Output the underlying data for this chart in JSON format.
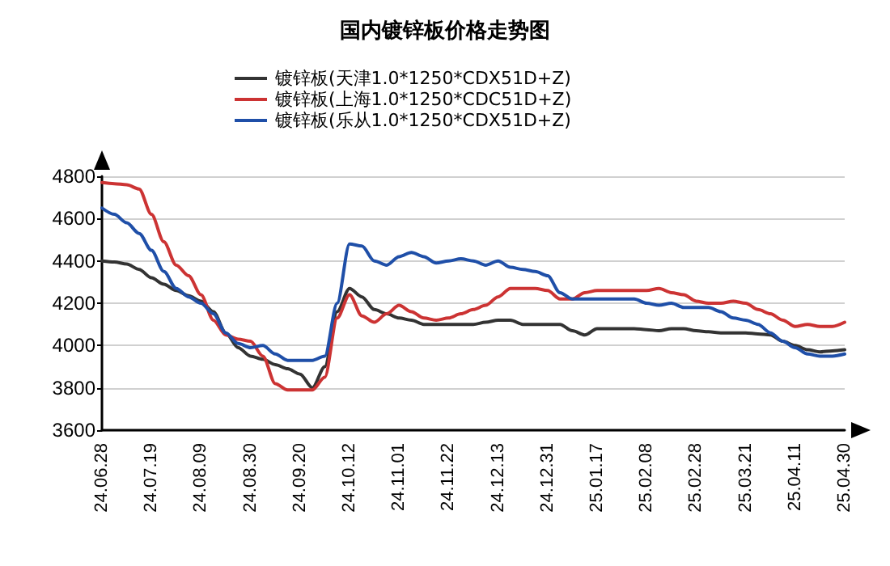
{
  "chart_data": {
    "type": "line",
    "title": "国内镀锌板价格走势图",
    "categories": [
      "24.06.28",
      null,
      null,
      null,
      "24.07.19",
      null,
      null,
      null,
      "24.08.09",
      null,
      null,
      null,
      "24.08.30",
      null,
      null,
      null,
      "24.09.20",
      null,
      null,
      null,
      "24.10.12",
      null,
      null,
      null,
      "24.11.01",
      null,
      null,
      null,
      "24.11.22",
      null,
      null,
      null,
      "24.12.13",
      null,
      null,
      null,
      "24.12.31",
      null,
      null,
      null,
      "25.01.17",
      null,
      null,
      null,
      "25.02.08",
      null,
      null,
      null,
      "25.02.28",
      null,
      null,
      null,
      "25.03.21",
      null,
      null,
      null,
      "25.04.11",
      null,
      null,
      null,
      "25.04.30"
    ],
    "series": [
      {
        "name": "镀锌板(天津1.0*1250*CDX51D+Z)",
        "color": "#333333",
        "values": [
          4400,
          4395,
          4385,
          4360,
          4320,
          4290,
          4260,
          4235,
          4210,
          4160,
          4060,
          3990,
          3950,
          3935,
          3910,
          3890,
          3865,
          3800,
          3900,
          4160,
          4270,
          4230,
          4170,
          4150,
          4130,
          4120,
          4100,
          4100,
          4100,
          4100,
          4100,
          4110,
          4120,
          4120,
          4100,
          4100,
          4100,
          4100,
          4070,
          4050,
          4080,
          4080,
          4080,
          4080,
          4075,
          4070,
          4080,
          4080,
          4070,
          4065,
          4060,
          4060,
          4060,
          4055,
          4050,
          4020,
          4000,
          3980,
          3970,
          3975,
          3980
        ]
      },
      {
        "name": "镀锌板(上海1.0*1250*CDC51D+Z)",
        "color": "#cc3333",
        "values": [
          4770,
          4765,
          4760,
          4740,
          4620,
          4490,
          4380,
          4330,
          4240,
          4120,
          4050,
          4030,
          4020,
          3950,
          3820,
          3790,
          3790,
          3790,
          3850,
          4130,
          4240,
          4140,
          4110,
          4150,
          4190,
          4160,
          4130,
          4120,
          4130,
          4150,
          4170,
          4190,
          4230,
          4270,
          4270,
          4270,
          4260,
          4220,
          4220,
          4250,
          4260,
          4260,
          4260,
          4260,
          4260,
          4270,
          4250,
          4240,
          4210,
          4200,
          4200,
          4210,
          4200,
          4170,
          4150,
          4120,
          4090,
          4100,
          4090,
          4090,
          4110
        ]
      },
      {
        "name": "镀锌板(乐从1.0*1250*CDX51D+Z)",
        "color": "#1f4fa8",
        "values": [
          4650,
          4620,
          4580,
          4530,
          4450,
          4350,
          4270,
          4230,
          4200,
          4150,
          4060,
          4010,
          3990,
          4000,
          3960,
          3930,
          3930,
          3930,
          3950,
          4200,
          4480,
          4470,
          4400,
          4380,
          4420,
          4440,
          4420,
          4390,
          4400,
          4410,
          4400,
          4380,
          4400,
          4370,
          4360,
          4350,
          4330,
          4250,
          4220,
          4220,
          4220,
          4220,
          4220,
          4220,
          4200,
          4190,
          4200,
          4180,
          4180,
          4180,
          4160,
          4130,
          4120,
          4100,
          4060,
          4020,
          3990,
          3960,
          3950,
          3950,
          3960
        ]
      }
    ],
    "ylim": [
      3600,
      4800
    ],
    "yticks": [
      3600,
      3800,
      4000,
      4200,
      4400,
      4600,
      4800
    ],
    "grid": "y",
    "legend": "top",
    "marker": "none",
    "line_style": "solid"
  }
}
